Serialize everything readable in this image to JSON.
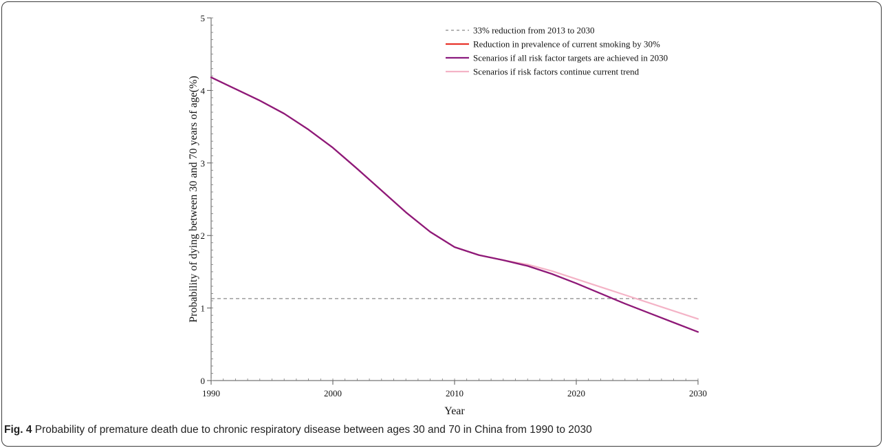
{
  "figure": {
    "label": "Fig. 4",
    "caption": "Probability of premature death due to chronic respiratory disease between ages 30 and 70 in China from 1990 to 2030"
  },
  "chart_data": {
    "type": "line",
    "title": "",
    "xlabel": "Year",
    "ylabel": "Probability of dying between 30 and 70 years of age(%)",
    "xlim": [
      1990,
      2030
    ],
    "ylim": [
      0,
      5
    ],
    "xticks": [
      1990,
      2000,
      2010,
      2020,
      2030
    ],
    "yticks": [
      0,
      1,
      2,
      3,
      4,
      5
    ],
    "grid": false,
    "legend_position": "top-right",
    "reference_line": {
      "name": "33% reduction from 2013 to 2030",
      "y": 1.13,
      "style": "dashed",
      "color": "#888888"
    },
    "series": [
      {
        "name": "Reduction in prevalence of current smoking by 30%",
        "color": "#e8332a",
        "x": [
          1990,
          1992,
          1994,
          1996,
          1998,
          2000,
          2002,
          2004,
          2006,
          2008,
          2010,
          2012,
          2014,
          2016,
          2018,
          2020,
          2022,
          2024,
          2026,
          2028,
          2030
        ],
        "values": [
          4.18,
          4.02,
          3.86,
          3.68,
          3.46,
          3.21,
          2.92,
          2.62,
          2.32,
          2.05,
          1.84,
          1.73,
          1.66,
          1.58,
          1.47,
          1.34,
          1.2,
          1.06,
          0.93,
          0.8,
          0.67
        ]
      },
      {
        "name": "Scenarios if all risk factor targets are achieved in 2030",
        "color": "#8a1a7e",
        "x": [
          1990,
          1992,
          1994,
          1996,
          1998,
          2000,
          2002,
          2004,
          2006,
          2008,
          2010,
          2012,
          2014,
          2016,
          2018,
          2020,
          2022,
          2024,
          2026,
          2028,
          2030
        ],
        "values": [
          4.18,
          4.02,
          3.86,
          3.68,
          3.46,
          3.21,
          2.92,
          2.62,
          2.32,
          2.05,
          1.84,
          1.73,
          1.66,
          1.58,
          1.47,
          1.34,
          1.2,
          1.06,
          0.93,
          0.8,
          0.67
        ]
      },
      {
        "name": "Scenarios if risk factors continue current trend",
        "color": "#f4b3c6",
        "x": [
          1990,
          1992,
          1994,
          1996,
          1998,
          2000,
          2002,
          2004,
          2006,
          2008,
          2010,
          2012,
          2014,
          2016,
          2018,
          2020,
          2022,
          2024,
          2026,
          2028,
          2030
        ],
        "values": [
          4.18,
          4.02,
          3.86,
          3.68,
          3.46,
          3.21,
          2.92,
          2.62,
          2.32,
          2.05,
          1.84,
          1.73,
          1.66,
          1.6,
          1.51,
          1.4,
          1.29,
          1.18,
          1.07,
          0.96,
          0.85
        ]
      }
    ]
  }
}
